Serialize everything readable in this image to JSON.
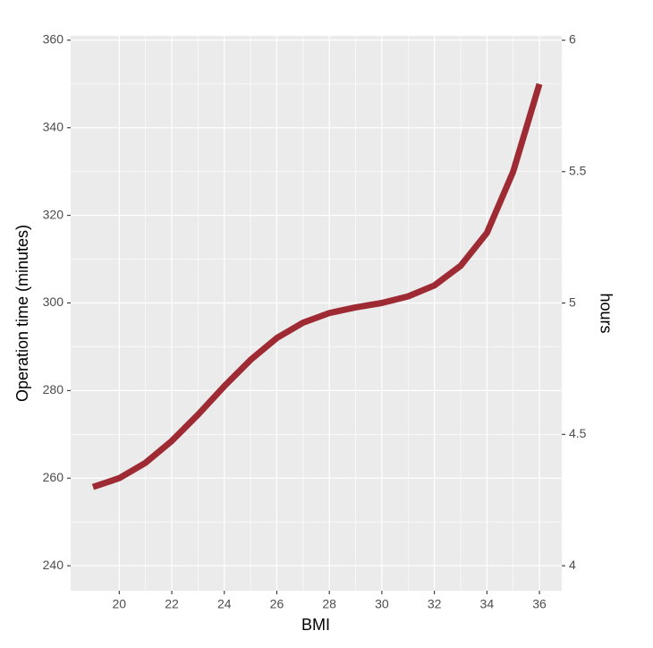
{
  "chart_data": {
    "type": "line",
    "x_label": "BMI",
    "y_label": "Operation time (minutes)",
    "y2_label": "hours",
    "x": [
      19,
      20,
      21,
      22,
      23,
      24,
      25,
      26,
      27,
      28,
      29,
      30,
      31,
      32,
      33,
      34,
      35,
      36
    ],
    "series": [
      {
        "color": "#9e2a33",
        "values": [
          258,
          260,
          263.5,
          268.5,
          274.5,
          281,
          287,
          292,
          295.5,
          297.7,
          299,
          300,
          301.5,
          304,
          308.5,
          316,
          330,
          350
        ]
      }
    ],
    "xlim": [
      18.15,
      36.85
    ],
    "xticks": [
      20,
      22,
      24,
      26,
      28,
      30,
      32,
      34,
      36
    ],
    "ylim": [
      234.3,
      361
    ],
    "yticks": [
      240,
      260,
      280,
      300,
      320,
      340,
      360
    ],
    "y2lim": [
      3.905,
      6.017
    ],
    "y2ticks": [
      4,
      4.5,
      5,
      5.5,
      6
    ],
    "grid": true
  }
}
